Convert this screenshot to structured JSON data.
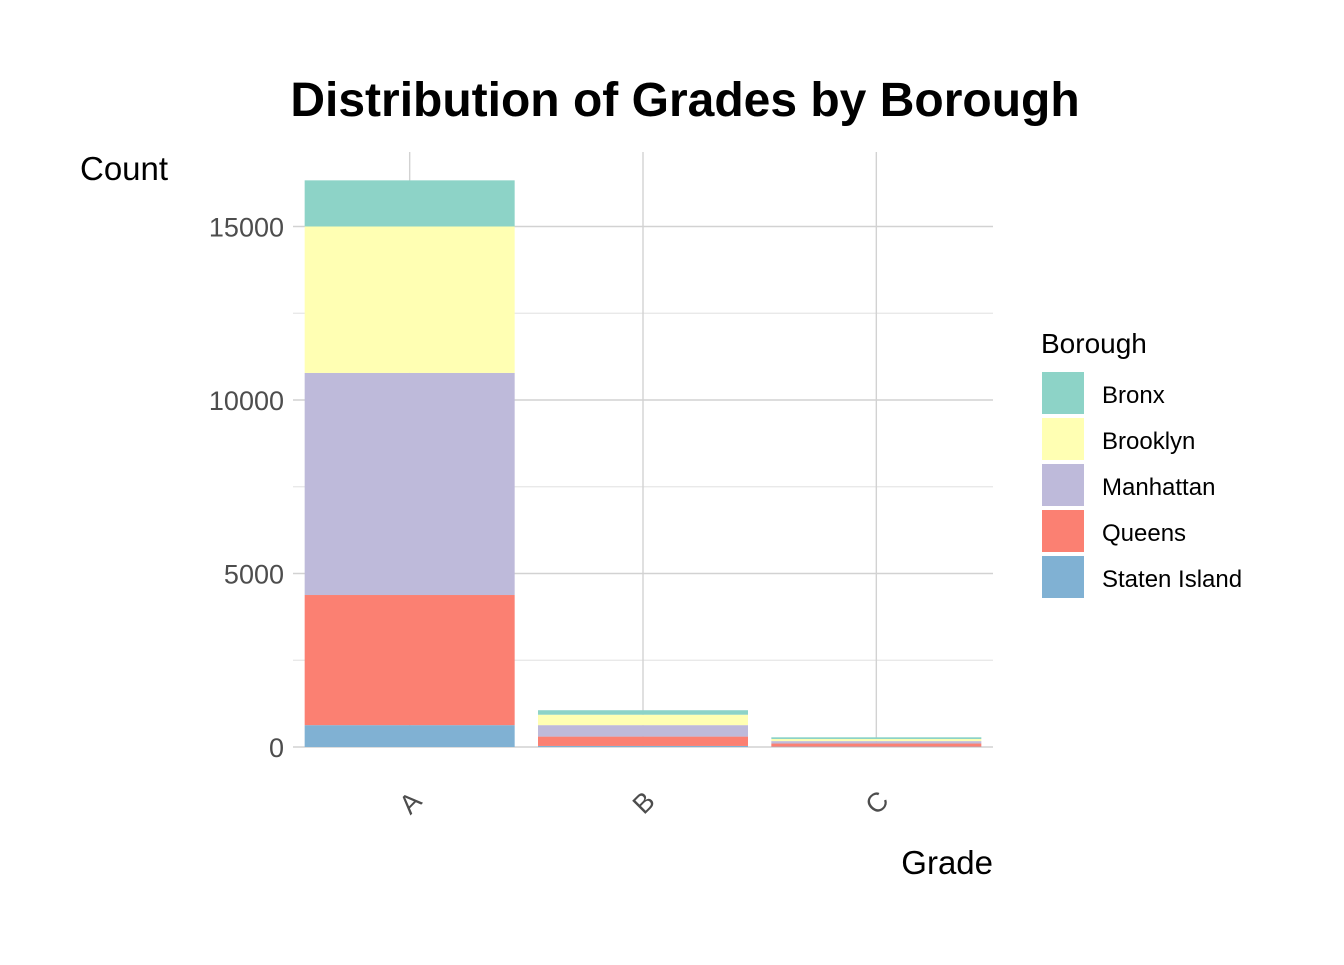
{
  "chart_data": {
    "type": "bar",
    "stacked": true,
    "title": "Distribution of Grades by Borough",
    "xlabel": "Grade",
    "ylabel": "Count",
    "categories": [
      "A",
      "B",
      "C"
    ],
    "ylim": [
      0,
      16500
    ],
    "yticks": [
      0,
      5000,
      10000,
      15000
    ],
    "ytick_labels": [
      "0",
      "5000",
      "10000",
      "15000"
    ],
    "grid": true,
    "legend": {
      "title": "Borough",
      "position": "right"
    },
    "series": [
      {
        "name": "Staten Island",
        "color": "#80B1D3",
        "values": [
          630,
          30,
          10
        ]
      },
      {
        "name": "Queens",
        "color": "#FB8072",
        "values": [
          3750,
          270,
          90
        ]
      },
      {
        "name": "Manhattan",
        "color": "#BEBADA",
        "values": [
          6400,
          330,
          70
        ]
      },
      {
        "name": "Brooklyn",
        "color": "#FFFFB3",
        "values": [
          4220,
          300,
          60
        ]
      },
      {
        "name": "Bronx",
        "color": "#8DD3C7",
        "values": [
          1330,
          130,
          50
        ]
      }
    ],
    "legend_order": [
      "Bronx",
      "Brooklyn",
      "Manhattan",
      "Queens",
      "Staten Island"
    ]
  }
}
